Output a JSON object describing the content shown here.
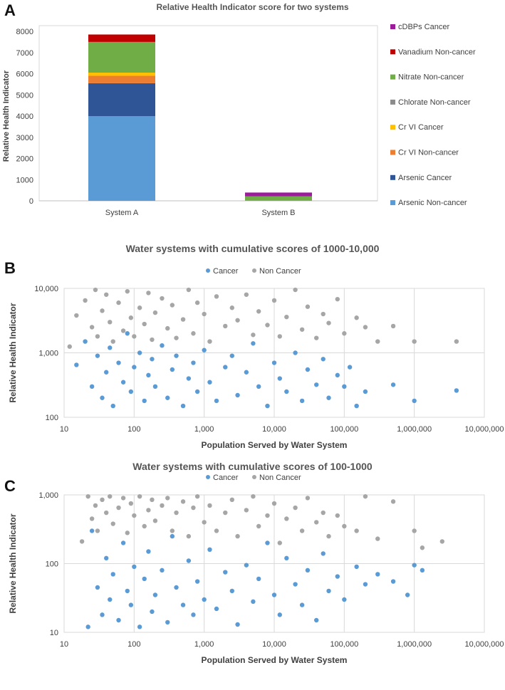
{
  "panels": {
    "a": {
      "letter": "A",
      "title": "Relative Health Indicator score for two systems"
    },
    "b": {
      "letter": "B",
      "title": "Water systems with cumulative scores of 1000-10,000"
    },
    "c": {
      "letter": "C",
      "title": "Water systems with cumulative scores of 100-1000"
    }
  },
  "chart_data": [
    {
      "type": "bar",
      "stacked": true,
      "title": "Relative Health Indicator score for two systems",
      "xlabel": "",
      "ylabel": "Relative Health Indicator",
      "ylim": [
        0,
        8000
      ],
      "yticks": [
        0,
        1000,
        2000,
        3000,
        4000,
        5000,
        6000,
        7000,
        8000
      ],
      "ytick_labels": [
        "0",
        "1000",
        "2000",
        "3000",
        "4000",
        "5000",
        "6000",
        "7000",
        "8000"
      ],
      "categories": [
        "System A",
        "System B"
      ],
      "legend_position": "right",
      "grid": false,
      "series": [
        {
          "name": "Arsenic Non-cancer",
          "color": "#5b9bd5",
          "values": [
            4000,
            0
          ]
        },
        {
          "name": "Arsenic Cancer",
          "color": "#2f5597",
          "values": [
            1550,
            0
          ]
        },
        {
          "name": "Cr VI Non-cancer",
          "color": "#ed7d31",
          "values": [
            350,
            0
          ]
        },
        {
          "name": "Cr VI Cancer",
          "color": "#ffc000",
          "values": [
            150,
            0
          ]
        },
        {
          "name": "Chlorate Non-cancer",
          "color": "#8c8c8c",
          "values": [
            0,
            20
          ]
        },
        {
          "name": "Nitrate Non-cancer",
          "color": "#70ad47",
          "values": [
            1450,
            190
          ]
        },
        {
          "name": "Vanadium Non-cancer",
          "color": "#c00000",
          "values": [
            350,
            0
          ]
        },
        {
          "name": "cDBPs Cancer",
          "color": "#9b1b9b",
          "values": [
            0,
            180
          ]
        }
      ]
    },
    {
      "type": "scatter",
      "title": "Water systems with cumulative scores of 1000-10,000",
      "xlabel": "Population Served by Water System",
      "ylabel": "Relative Health Indicator",
      "xscale": "log",
      "yscale": "log",
      "xlim": [
        10,
        10000000
      ],
      "ylim": [
        100,
        10000
      ],
      "xticks": [
        10,
        100,
        1000,
        10000,
        100000,
        1000000,
        10000000
      ],
      "xtick_labels": [
        "10",
        "100",
        "1,000",
        "10,000",
        "100,000",
        "1,000,000",
        "10,000,000"
      ],
      "yticks": [
        100,
        1000,
        10000
      ],
      "ytick_labels": [
        "100",
        "1,000",
        "10,000"
      ],
      "grid": true,
      "legend_position": "top",
      "series": [
        {
          "name": "Cancer",
          "color": "#5b9bd5",
          "x": [
            15,
            20,
            25,
            30,
            35,
            40,
            45,
            50,
            60,
            70,
            80,
            90,
            100,
            120,
            140,
            160,
            180,
            200,
            250,
            300,
            350,
            400,
            500,
            600,
            700,
            800,
            1000,
            1200,
            1500,
            2000,
            2500,
            3000,
            4000,
            5000,
            6000,
            8000,
            10000,
            12000,
            15000,
            20000,
            25000,
            30000,
            40000,
            50000,
            60000,
            80000,
            100000,
            120000,
            150000,
            200000,
            500000,
            1000000,
            4000000
          ],
          "y": [
            650,
            1500,
            300,
            900,
            200,
            500,
            1200,
            150,
            700,
            350,
            2000,
            250,
            600,
            1000,
            180,
            450,
            800,
            300,
            1300,
            200,
            550,
            900,
            150,
            400,
            700,
            250,
            1100,
            350,
            180,
            600,
            900,
            220,
            500,
            1400,
            300,
            150,
            700,
            400,
            250,
            1000,
            180,
            550,
            320,
            800,
            200,
            450,
            300,
            600,
            150,
            250,
            320,
            180,
            260
          ]
        },
        {
          "name": "Non Cancer",
          "color": "#a6a6a6",
          "x": [
            12,
            15,
            20,
            25,
            28,
            30,
            35,
            40,
            45,
            50,
            60,
            70,
            80,
            90,
            100,
            120,
            140,
            160,
            180,
            200,
            250,
            300,
            350,
            400,
            500,
            600,
            700,
            800,
            1000,
            1200,
            1500,
            2000,
            2500,
            3000,
            4000,
            5000,
            6000,
            8000,
            10000,
            12000,
            15000,
            20000,
            25000,
            30000,
            40000,
            50000,
            60000,
            80000,
            100000,
            150000,
            200000,
            300000,
            500000,
            1000000,
            4000000
          ],
          "y": [
            1250,
            3800,
            6500,
            2500,
            9500,
            1800,
            4500,
            8000,
            3000,
            1500,
            6000,
            2200,
            9000,
            3500,
            1800,
            5000,
            2800,
            8500,
            1600,
            4200,
            7000,
            2400,
            5500,
            1700,
            3300,
            9500,
            2000,
            6000,
            4000,
            1500,
            7500,
            2600,
            5000,
            3200,
            8000,
            1900,
            4400,
            2700,
            6500,
            1800,
            3600,
            9500,
            2300,
            5200,
            1700,
            4000,
            2900,
            6800,
            2000,
            3500,
            2500,
            1500,
            2600,
            1500,
            1500
          ]
        }
      ]
    },
    {
      "type": "scatter",
      "title": "Water systems with cumulative scores of 100-1000",
      "xlabel": "Population Served by Water System",
      "ylabel": "Relative Health Indicator",
      "xscale": "log",
      "yscale": "log",
      "xlim": [
        10,
        10000000
      ],
      "ylim": [
        10,
        1000
      ],
      "xticks": [
        10,
        100,
        1000,
        10000,
        100000,
        1000000,
        10000000
      ],
      "xtick_labels": [
        "10",
        "100",
        "1,000",
        "10,000",
        "100,000",
        "1,000,000",
        "10,000,000"
      ],
      "yticks": [
        10,
        100,
        1000
      ],
      "ytick_labels": [
        "10",
        "100",
        "1,000"
      ],
      "grid": true,
      "legend_position": "top",
      "series": [
        {
          "name": "Cancer",
          "color": "#5b9bd5",
          "x": [
            22,
            25,
            30,
            35,
            40,
            45,
            50,
            60,
            70,
            80,
            90,
            100,
            120,
            140,
            160,
            180,
            200,
            250,
            300,
            350,
            400,
            500,
            600,
            700,
            800,
            1000,
            1200,
            1500,
            2000,
            2500,
            3000,
            4000,
            5000,
            6000,
            8000,
            10000,
            12000,
            15000,
            20000,
            25000,
            30000,
            40000,
            50000,
            60000,
            80000,
            100000,
            150000,
            200000,
            300000,
            500000,
            800000,
            1000000,
            1300000
          ],
          "y": [
            12,
            300,
            45,
            18,
            120,
            30,
            70,
            15,
            200,
            40,
            25,
            90,
            12,
            60,
            150,
            20,
            35,
            80,
            14,
            250,
            45,
            25,
            110,
            18,
            55,
            30,
            160,
            22,
            75,
            40,
            13,
            95,
            28,
            60,
            200,
            35,
            18,
            120,
            50,
            25,
            80,
            15,
            140,
            40,
            65,
            30,
            90,
            50,
            70,
            55,
            35,
            95,
            80
          ]
        },
        {
          "name": "Non Cancer",
          "color": "#a6a6a6",
          "x": [
            18,
            22,
            25,
            28,
            30,
            35,
            40,
            45,
            50,
            60,
            70,
            80,
            90,
            100,
            120,
            140,
            160,
            180,
            200,
            250,
            300,
            350,
            400,
            500,
            600,
            700,
            800,
            1000,
            1200,
            1500,
            2000,
            2500,
            3000,
            4000,
            5000,
            6000,
            8000,
            10000,
            12000,
            15000,
            20000,
            25000,
            30000,
            40000,
            50000,
            60000,
            80000,
            100000,
            150000,
            200000,
            300000,
            500000,
            1000000,
            1300000,
            2500000
          ],
          "y": [
            210,
            950,
            450,
            700,
            300,
            850,
            550,
            950,
            380,
            650,
            900,
            280,
            750,
            500,
            950,
            350,
            600,
            850,
            420,
            700,
            900,
            300,
            550,
            800,
            250,
            650,
            950,
            400,
            700,
            300,
            550,
            850,
            250,
            600,
            950,
            350,
            500,
            750,
            200,
            450,
            650,
            300,
            900,
            400,
            550,
            250,
            500,
            350,
            300,
            950,
            230,
            800,
            300,
            170,
            210
          ]
        }
      ]
    }
  ]
}
